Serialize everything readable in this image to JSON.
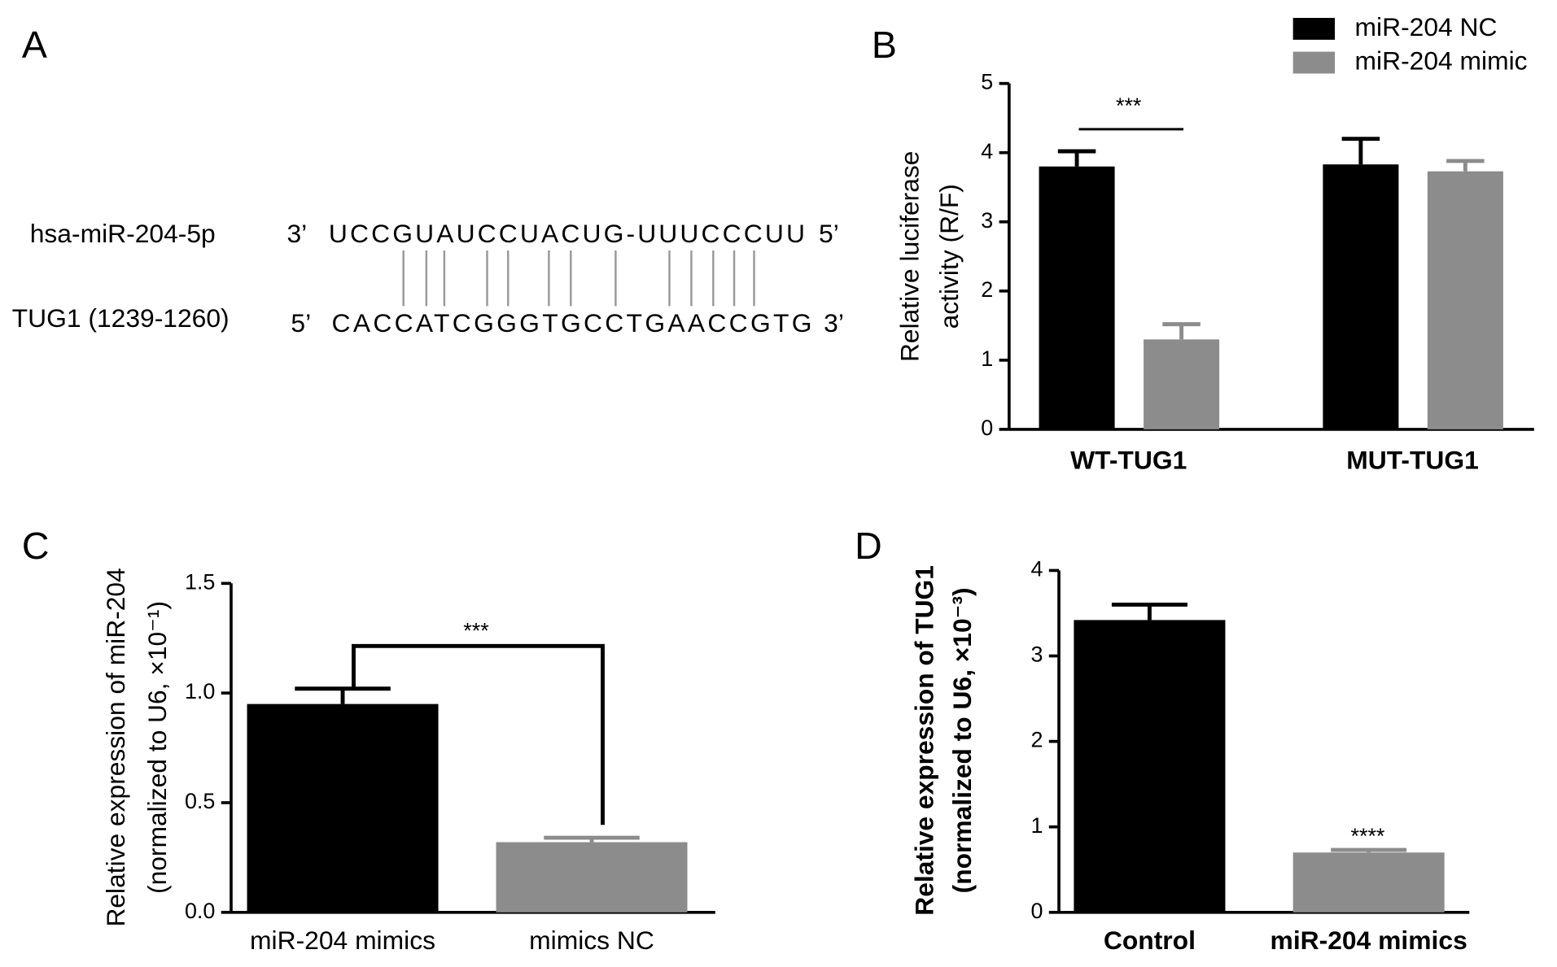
{
  "panel_a": {
    "label": "A",
    "rows": [
      {
        "name": "hsa-miR-204-5p",
        "left_end": "3’",
        "sequence": "UCCGUAUCCUACUG-UUUCCCUU",
        "right_end": "5’"
      },
      {
        "name": "TUG1 (1239-1260)",
        "left_end": "5’",
        "sequence": "CACCATCGGGTGCCTGAACCGTG",
        "right_end": "3’"
      }
    ]
  },
  "chart_data": [
    {
      "panel": "B",
      "type": "bar",
      "ylabel": [
        "Relative luciferase",
        "activity (R/F)"
      ],
      "categories": [
        "WT-TUG1",
        "MUT-TUG1"
      ],
      "series": [
        {
          "name": "miR-204  NC",
          "color": "#000000",
          "values": [
            3.8,
            3.83
          ],
          "errors": [
            0.22,
            0.37
          ]
        },
        {
          "name": "miR-204 mimic",
          "color": "#8c8c8c",
          "values": [
            1.3,
            3.73
          ],
          "errors": [
            0.22,
            0.15
          ]
        }
      ],
      "ylim": [
        0,
        5
      ],
      "yticks": [
        0,
        1,
        2,
        3,
        4,
        5
      ],
      "annotations": [
        "***"
      ]
    },
    {
      "panel": "C",
      "type": "bar",
      "ylabel": [
        "Relative expression of miR-204",
        "(normalized to U6, ×10⁻¹)"
      ],
      "categories": [
        "miR-204 mimics",
        "mimics NC"
      ],
      "values": [
        0.95,
        0.32
      ],
      "errors": [
        0.07,
        0.02
      ],
      "colors": [
        "#000000",
        "#8c8c8c"
      ],
      "ylim": [
        0,
        1.5
      ],
      "yticks": [
        {
          "value": 0,
          "label": "0.0"
        },
        {
          "value": 0.5,
          "label": "0.5"
        },
        {
          "value": 1,
          "label": "1.0"
        },
        {
          "value": 1.5,
          "label": "1.5"
        }
      ],
      "annotations": [
        "***"
      ]
    },
    {
      "panel": "D",
      "type": "bar",
      "ylabel": [
        "Relative expression of TUG1",
        "(normalized to U6, ×10⁻³)"
      ],
      "categories": [
        "Control",
        "miR-204 mimics"
      ],
      "values": [
        3.42,
        0.7
      ],
      "errors": [
        0.18,
        0.03
      ],
      "colors": [
        "#000000",
        "#8c8c8c"
      ],
      "ylim": [
        0,
        4
      ],
      "yticks": [
        0,
        1,
        2,
        3,
        4
      ],
      "annotations": [
        "****"
      ]
    }
  ]
}
